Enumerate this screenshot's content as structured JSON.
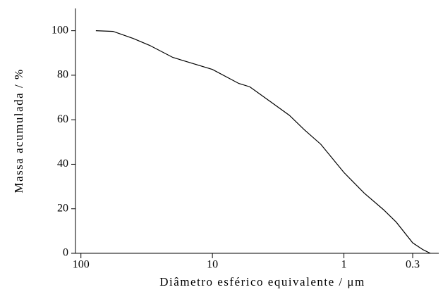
{
  "chart_data": {
    "type": "line",
    "x_label": "Diâmetro esférico equivalente / μm",
    "y_label": "Massa acumulada / %",
    "x_log": true,
    "xlim": [
      110,
      0.19
    ],
    "xticks": [
      100,
      10,
      1,
      0.3
    ],
    "ylim": [
      0,
      110
    ],
    "yticks": [
      0,
      20,
      40,
      60,
      80,
      100
    ],
    "x": [
      77,
      57,
      40,
      30,
      20,
      10,
      6.3,
      5.2,
      2.6,
      2,
      1.5,
      1,
      0.7,
      0.5,
      0.4,
      0.3,
      0.25,
      0.22
    ],
    "series": [
      {
        "color": "#000000",
        "values": [
          100,
          99.7,
          96.5,
          93.4,
          88,
          82.6,
          76.3,
          74.8,
          62,
          55.5,
          49,
          36.3,
          27,
          19.6,
          14,
          4.7,
          1.6,
          0
        ]
      }
    ]
  }
}
